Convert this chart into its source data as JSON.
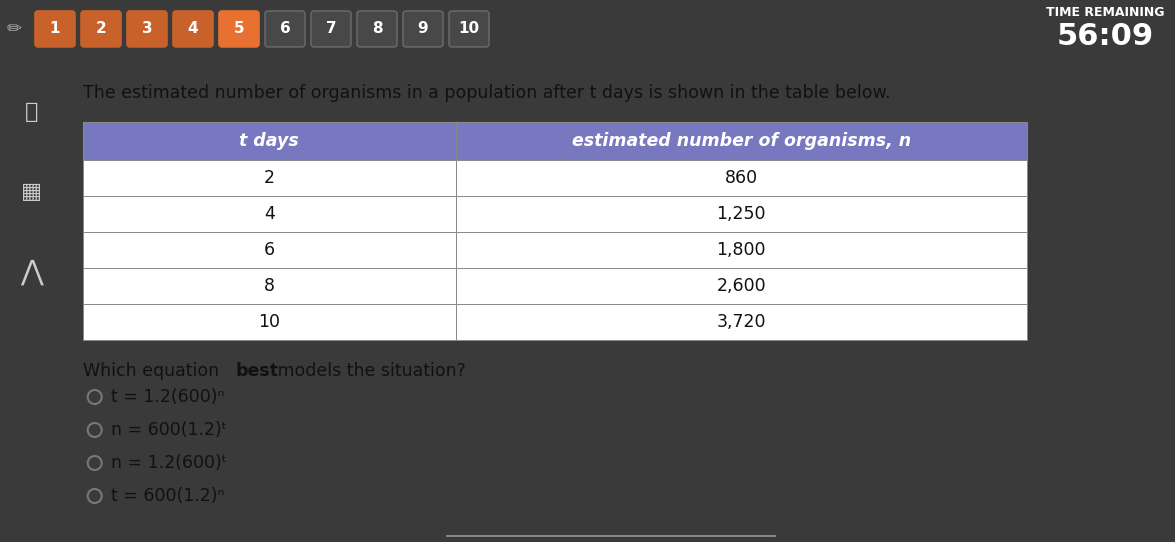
{
  "bg_color_outer": "#3a3a3a",
  "bg_color_inner": "#e8e8e8",
  "bg_content": "#f2f2f2",
  "top_bar_color": "#2a2a2a",
  "timer_label": "TIME REMAINING",
  "timer_value": "56:09",
  "question_text": "The estimated number of organisms in a population after t days is shown in the table below.",
  "table_header_color": "#7878c0",
  "col1_header": "t days",
  "col2_header": "estimated number of organisms, n",
  "table_data": [
    [
      "2",
      "860"
    ],
    [
      "4",
      "1,250"
    ],
    [
      "6",
      "1,800"
    ],
    [
      "8",
      "2,600"
    ],
    [
      "10",
      "3,720"
    ]
  ],
  "choice_texts": [
    "t",
    "n",
    "n",
    "t"
  ],
  "choice_eq1": [
    "= 1.2(600)",
    "= 600(1.2)",
    "= 1.2(600)",
    "= 600(1.2)"
  ],
  "choice_exp": [
    "ⁿ",
    "ᵗ",
    "ᵗ",
    "ⁿ"
  ],
  "nav_numbers": [
    "1",
    "2",
    "3",
    "4",
    "5",
    "6",
    "7",
    "8",
    "9",
    "10"
  ],
  "nav_filled_color": "#c8622a",
  "nav_current_color": "#e87030",
  "nav_inactive_color": "#484848",
  "nav_text_color": "#ffffff",
  "nav_border_color": "#c8622a",
  "nav_inactive_border": "#666666"
}
